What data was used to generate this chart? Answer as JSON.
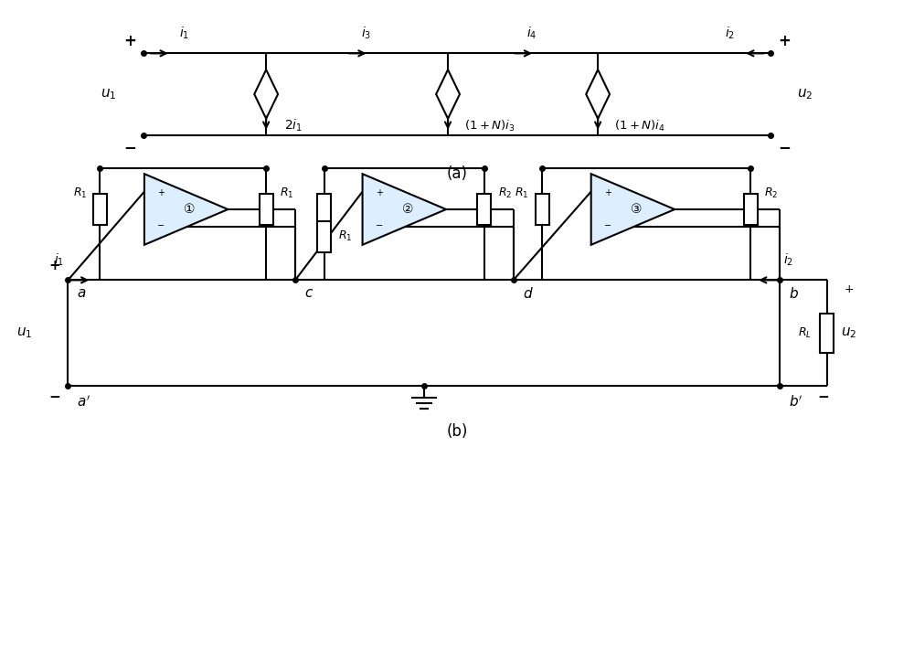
{
  "title_a": "(a)",
  "title_b": "(b)",
  "bg_color": "#ffffff",
  "line_color": "#000000",
  "line_width": 1.5,
  "fig_width": 10.0,
  "fig_height": 7.11
}
